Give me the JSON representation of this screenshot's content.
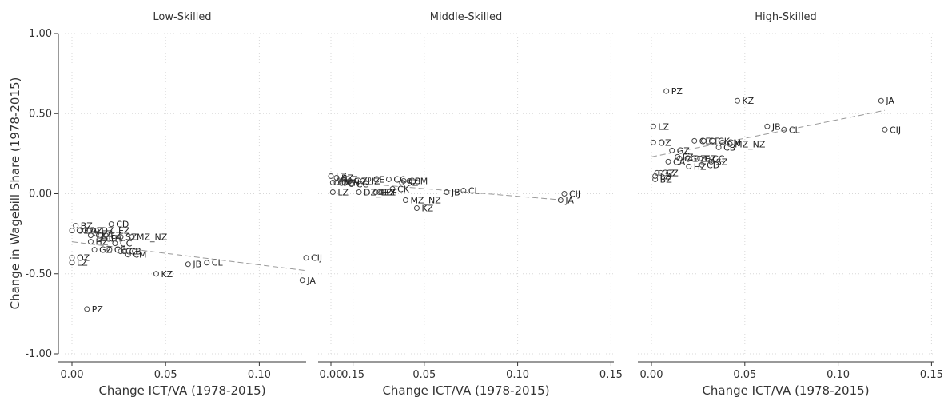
{
  "chart_data": {
    "type": "scatter",
    "xlabel": "Change ICT/VA (1978-2015)",
    "ylabel": "Change in Wagebill Share (1978-2015)",
    "x_ticks": [
      "0.00",
      "0.05",
      "0.10",
      "0.15"
    ],
    "y_ticks": [
      "1.00",
      "0.50",
      "0.00",
      "-0.50",
      "-1.00"
    ],
    "xlim": [
      0,
      0.15
    ],
    "ylim": [
      -1.0,
      1.0
    ],
    "grid": true,
    "fit_line": "dashed gray linear fit",
    "panels": [
      {
        "title": "Low-Skilled",
        "fit": [
          [
            0.0,
            -0.3
          ],
          [
            0.125,
            -0.48
          ]
        ],
        "points": [
          {
            "label": "BZ",
            "x": 0.002,
            "y": -0.2
          },
          {
            "label": "OZ",
            "x": 0.0,
            "y": -0.23
          },
          {
            "label": "CA",
            "x": 0.004,
            "y": -0.23
          },
          {
            "label": "DZ",
            "x": 0.007,
            "y": -0.23
          },
          {
            "label": "CD",
            "x": 0.021,
            "y": -0.19
          },
          {
            "label": "DZ_EZ",
            "x": 0.013,
            "y": -0.23
          },
          {
            "label": "EZ",
            "x": 0.013,
            "y": -0.25
          },
          {
            "label": "LZ",
            "x": 0.0,
            "y": -0.43
          },
          {
            "label": "OZ",
            "x": 0.0,
            "y": -0.4
          },
          {
            "label": "GZ",
            "x": 0.012,
            "y": -0.35
          },
          {
            "label": "CK",
            "x": 0.01,
            "y": -0.26
          },
          {
            "label": "CF",
            "x": 0.015,
            "y": -0.28
          },
          {
            "label": "HZ",
            "x": 0.01,
            "y": -0.3
          },
          {
            "label": "CH",
            "x": 0.017,
            "y": -0.28
          },
          {
            "label": "FZ",
            "x": 0.018,
            "y": -0.26
          },
          {
            "label": "SZ",
            "x": 0.026,
            "y": -0.27
          },
          {
            "label": "MZ_NZ",
            "x": 0.032,
            "y": -0.27
          },
          {
            "label": "CC",
            "x": 0.023,
            "y": -0.31
          },
          {
            "label": "CE",
            "x": 0.02,
            "y": -0.35
          },
          {
            "label": "CG",
            "x": 0.026,
            "y": -0.36
          },
          {
            "label": "CB",
            "x": 0.028,
            "y": -0.36
          },
          {
            "label": "CM",
            "x": 0.03,
            "y": -0.38
          },
          {
            "label": "KZ",
            "x": 0.045,
            "y": -0.5
          },
          {
            "label": "JB",
            "x": 0.062,
            "y": -0.44
          },
          {
            "label": "CL",
            "x": 0.072,
            "y": -0.43
          },
          {
            "label": "CIJ",
            "x": 0.125,
            "y": -0.4
          },
          {
            "label": "JA",
            "x": 0.123,
            "y": -0.54
          },
          {
            "label": "PZ",
            "x": 0.008,
            "y": -0.72
          }
        ]
      },
      {
        "title": "Middle-Skilled",
        "fit": [
          [
            0.0,
            0.08
          ],
          [
            0.125,
            -0.04
          ]
        ],
        "points": [
          {
            "label": "LZ",
            "x": 0.0,
            "y": 0.11
          },
          {
            "label": "BZ",
            "x": 0.003,
            "y": 0.1
          },
          {
            "label": "DZ",
            "x": 0.005,
            "y": 0.09
          },
          {
            "label": "CA",
            "x": 0.001,
            "y": 0.07
          },
          {
            "label": "OZ",
            "x": 0.003,
            "y": 0.07
          },
          {
            "label": "GZ",
            "x": 0.01,
            "y": 0.08
          },
          {
            "label": "CH",
            "x": 0.006,
            "y": 0.07
          },
          {
            "label": "HZ",
            "x": 0.017,
            "y": 0.08
          },
          {
            "label": "CG",
            "x": 0.011,
            "y": 0.06
          },
          {
            "label": "CE",
            "x": 0.02,
            "y": 0.09
          },
          {
            "label": "CC",
            "x": 0.031,
            "y": 0.09
          },
          {
            "label": "SZ",
            "x": 0.038,
            "y": 0.07
          },
          {
            "label": "CB",
            "x": 0.039,
            "y": 0.08
          },
          {
            "label": "CM",
            "x": 0.042,
            "y": 0.08
          },
          {
            "label": "CK",
            "x": 0.033,
            "y": 0.03
          },
          {
            "label": "LZ",
            "x": 0.001,
            "y": 0.01
          },
          {
            "label": "DZ_EZ",
            "x": 0.015,
            "y": 0.01
          },
          {
            "label": "CD",
            "x": 0.024,
            "y": 0.01
          },
          {
            "label": "EZ",
            "x": 0.026,
            "y": 0.01
          },
          {
            "label": "CF",
            "x": 0.027,
            "y": 0.01
          },
          {
            "label": "MZ_NZ",
            "x": 0.04,
            "y": -0.04
          },
          {
            "label": "KZ",
            "x": 0.046,
            "y": -0.09
          },
          {
            "label": "JB",
            "x": 0.062,
            "y": 0.01
          },
          {
            "label": "CL",
            "x": 0.071,
            "y": 0.02
          },
          {
            "label": "CIJ",
            "x": 0.125,
            "y": 0.0
          },
          {
            "label": "JA",
            "x": 0.123,
            "y": -0.04
          }
        ]
      },
      {
        "title": "High-Skilled",
        "fit": [
          [
            0.0,
            0.23
          ],
          [
            0.125,
            0.52
          ]
        ],
        "points": [
          {
            "label": "PZ",
            "x": 0.008,
            "y": 0.64
          },
          {
            "label": "KZ",
            "x": 0.046,
            "y": 0.58
          },
          {
            "label": "JA",
            "x": 0.123,
            "y": 0.58
          },
          {
            "label": "LZ",
            "x": 0.001,
            "y": 0.42
          },
          {
            "label": "JB",
            "x": 0.062,
            "y": 0.42
          },
          {
            "label": "CL",
            "x": 0.071,
            "y": 0.4
          },
          {
            "label": "CIJ",
            "x": 0.125,
            "y": 0.4
          },
          {
            "label": "OZ",
            "x": 0.001,
            "y": 0.32
          },
          {
            "label": "CE",
            "x": 0.023,
            "y": 0.33
          },
          {
            "label": "CF",
            "x": 0.028,
            "y": 0.33
          },
          {
            "label": "CK",
            "x": 0.033,
            "y": 0.33
          },
          {
            "label": "CM",
            "x": 0.038,
            "y": 0.32
          },
          {
            "label": "MZ_NZ",
            "x": 0.042,
            "y": 0.31
          },
          {
            "label": "CB",
            "x": 0.036,
            "y": 0.29
          },
          {
            "label": "GZ",
            "x": 0.011,
            "y": 0.27
          },
          {
            "label": "FZ",
            "x": 0.014,
            "y": 0.23
          },
          {
            "label": "CA",
            "x": 0.009,
            "y": 0.2
          },
          {
            "label": "CG",
            "x": 0.015,
            "y": 0.22
          },
          {
            "label": "DZ",
            "x": 0.02,
            "y": 0.22
          },
          {
            "label": "EZ",
            "x": 0.026,
            "y": 0.22
          },
          {
            "label": "CC",
            "x": 0.03,
            "y": 0.22
          },
          {
            "label": "HZ",
            "x": 0.02,
            "y": 0.17
          },
          {
            "label": "CD",
            "x": 0.027,
            "y": 0.18
          },
          {
            "label": "SZ",
            "x": 0.032,
            "y": 0.2
          },
          {
            "label": "GZ",
            "x": 0.005,
            "y": 0.13
          },
          {
            "label": "OZ",
            "x": 0.003,
            "y": 0.13
          },
          {
            "label": "LZ",
            "x": 0.002,
            "y": 0.11
          },
          {
            "label": "BZ",
            "x": 0.002,
            "y": 0.09
          }
        ]
      }
    ]
  }
}
